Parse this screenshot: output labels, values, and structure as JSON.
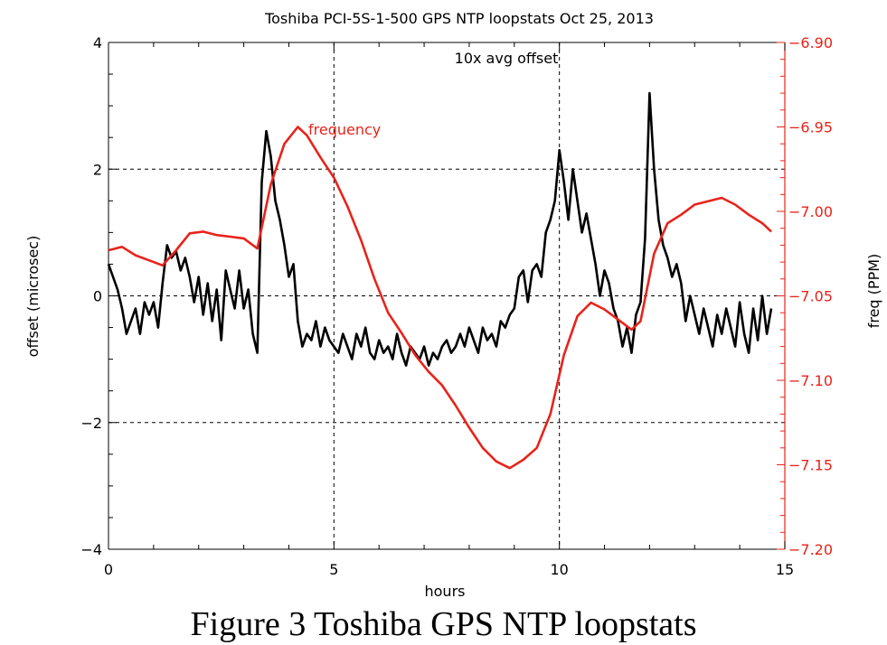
{
  "caption": "Figure 3 Toshiba GPS NTP loopstats",
  "colors": {
    "offset": "#000000",
    "frequency": "#e8231a",
    "grid": "#000000"
  },
  "chart_data": {
    "type": "line",
    "title": "Toshiba PCI-5S-1-500 GPS NTP loopstats  Oct 25, 2013",
    "xlabel": "hours",
    "ylabel_left": "offset  (microsec)",
    "ylabel_right": "freq  (PPM)",
    "xlim": [
      0,
      15
    ],
    "ylim_left": [
      -4,
      4
    ],
    "ylim_right": [
      -7.2,
      -6.9
    ],
    "x_ticks": [
      "0",
      "5",
      "10",
      "15"
    ],
    "y_left_ticks": [
      "4",
      "2",
      "0",
      "−2",
      "−4"
    ],
    "y_right_ticks": [
      "−6.90",
      "−6.95",
      "−7.00",
      "−7.05",
      "−7.10",
      "−7.15",
      "−7.20"
    ],
    "grid": "dashed at x=5, x=10 and y=2, 0, -2",
    "annotations": [
      {
        "text": "10x avg offset",
        "color": "#000000"
      },
      {
        "text": "frequency",
        "color": "#e8231a"
      }
    ],
    "series": [
      {
        "axis": "left",
        "color": "#000000",
        "x": [
          0.0,
          0.1,
          0.2,
          0.3,
          0.4,
          0.5,
          0.6,
          0.7,
          0.8,
          0.9,
          1.0,
          1.1,
          1.2,
          1.3,
          1.4,
          1.5,
          1.6,
          1.7,
          1.8,
          1.9,
          2.0,
          2.1,
          2.2,
          2.3,
          2.4,
          2.5,
          2.6,
          2.7,
          2.8,
          2.9,
          3.0,
          3.1,
          3.2,
          3.3,
          3.4,
          3.5,
          3.6,
          3.7,
          3.8,
          3.9,
          4.0,
          4.1,
          4.2,
          4.3,
          4.4,
          4.5,
          4.6,
          4.7,
          4.8,
          4.9,
          5.0,
          5.1,
          5.2,
          5.3,
          5.4,
          5.5,
          5.6,
          5.7,
          5.8,
          5.9,
          6.0,
          6.1,
          6.2,
          6.3,
          6.4,
          6.5,
          6.6,
          6.7,
          6.8,
          6.9,
          7.0,
          7.1,
          7.2,
          7.3,
          7.4,
          7.5,
          7.6,
          7.7,
          7.8,
          7.9,
          8.0,
          8.1,
          8.2,
          8.3,
          8.4,
          8.5,
          8.6,
          8.7,
          8.8,
          8.9,
          9.0,
          9.1,
          9.2,
          9.3,
          9.4,
          9.5,
          9.6,
          9.7,
          9.8,
          9.9,
          10.0,
          10.1,
          10.2,
          10.3,
          10.4,
          10.5,
          10.6,
          10.7,
          10.8,
          10.9,
          11.0,
          11.1,
          11.2,
          11.3,
          11.4,
          11.5,
          11.6,
          11.7,
          11.8,
          11.9,
          12.0,
          12.1,
          12.2,
          12.3,
          12.4,
          12.5,
          12.6,
          12.7,
          12.8,
          12.9,
          13.0,
          13.1,
          13.2,
          13.3,
          13.4,
          13.5,
          13.6,
          13.7,
          13.8,
          13.9,
          14.0,
          14.1,
          14.2,
          14.3,
          14.4,
          14.5,
          14.6,
          14.7
        ],
        "values": [
          0.5,
          0.3,
          0.1,
          -0.2,
          -0.6,
          -0.4,
          -0.2,
          -0.6,
          -0.1,
          -0.3,
          -0.1,
          -0.5,
          0.2,
          0.8,
          0.6,
          0.7,
          0.4,
          0.6,
          0.3,
          -0.1,
          0.3,
          -0.3,
          0.2,
          -0.4,
          0.1,
          -0.7,
          0.4,
          0.1,
          -0.2,
          0.4,
          -0.2,
          0.1,
          -0.6,
          -0.9,
          1.8,
          2.6,
          2.2,
          1.5,
          1.2,
          0.8,
          0.3,
          0.5,
          -0.4,
          -0.8,
          -0.6,
          -0.7,
          -0.4,
          -0.8,
          -0.5,
          -0.7,
          -0.8,
          -0.9,
          -0.6,
          -0.8,
          -1.0,
          -0.6,
          -0.8,
          -0.5,
          -0.9,
          -1.0,
          -0.7,
          -0.9,
          -0.8,
          -1.0,
          -0.6,
          -0.9,
          -1.1,
          -0.8,
          -0.9,
          -1.0,
          -0.8,
          -1.1,
          -0.9,
          -1.0,
          -0.8,
          -0.7,
          -0.9,
          -0.8,
          -0.6,
          -0.8,
          -0.5,
          -0.7,
          -0.9,
          -0.5,
          -0.7,
          -0.6,
          -0.8,
          -0.4,
          -0.5,
          -0.3,
          -0.2,
          0.3,
          0.4,
          -0.1,
          0.4,
          0.5,
          0.3,
          1.0,
          1.2,
          1.5,
          2.3,
          1.8,
          1.2,
          2.0,
          1.5,
          1.0,
          1.3,
          0.9,
          0.5,
          0.0,
          0.4,
          0.2,
          -0.2,
          -0.4,
          -0.8,
          -0.5,
          -0.9,
          -0.3,
          -0.1,
          0.9,
          3.2,
          2.0,
          1.2,
          0.8,
          0.6,
          0.3,
          0.5,
          0.2,
          -0.4,
          0.0,
          -0.3,
          -0.6,
          -0.2,
          -0.5,
          -0.8,
          -0.3,
          -0.6,
          -0.2,
          -0.5,
          -0.8,
          -0.1,
          -0.6,
          -0.9,
          -0.2,
          -0.7,
          0.0,
          -0.6,
          -0.2
        ]
      },
      {
        "axis": "right",
        "color": "#e8231a",
        "x": [
          0.0,
          0.3,
          0.6,
          0.9,
          1.2,
          1.5,
          1.8,
          2.1,
          2.4,
          2.7,
          3.0,
          3.3,
          3.6,
          3.9,
          4.2,
          4.4,
          4.7,
          5.0,
          5.3,
          5.6,
          5.9,
          6.2,
          6.5,
          6.8,
          7.1,
          7.4,
          7.7,
          8.0,
          8.3,
          8.6,
          8.9,
          9.2,
          9.5,
          9.8,
          10.1,
          10.4,
          10.7,
          11.0,
          11.3,
          11.6,
          11.8,
          12.1,
          12.4,
          12.7,
          13.0,
          13.3,
          13.6,
          13.9,
          14.2,
          14.5,
          14.7
        ],
        "values": [
          -7.023,
          -7.021,
          -7.026,
          -7.029,
          -7.032,
          -7.023,
          -7.013,
          -7.012,
          -7.014,
          -7.015,
          -7.016,
          -7.022,
          -6.984,
          -6.96,
          -6.95,
          -6.955,
          -6.968,
          -6.98,
          -6.997,
          -7.017,
          -7.04,
          -7.06,
          -7.072,
          -7.085,
          -7.095,
          -7.103,
          -7.115,
          -7.128,
          -7.14,
          -7.148,
          -7.152,
          -7.147,
          -7.14,
          -7.12,
          -7.085,
          -7.062,
          -7.054,
          -7.058,
          -7.064,
          -7.07,
          -7.065,
          -7.025,
          -7.007,
          -7.002,
          -6.996,
          -6.994,
          -6.992,
          -6.996,
          -7.002,
          -7.007,
          -7.012
        ]
      }
    ]
  }
}
